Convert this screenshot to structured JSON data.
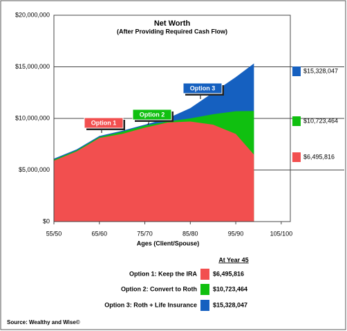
{
  "chart_data": {
    "type": "area",
    "title": "Net Worth",
    "subtitle": "(After Providing Required Cash Flow)",
    "x_label": "Ages (Client/Spouse)",
    "x": [
      55,
      60,
      65,
      70,
      75,
      80,
      85,
      90,
      95,
      99
    ],
    "xlim": [
      55,
      107
    ],
    "xticks": [
      {
        "value": 55,
        "label": "55/50"
      },
      {
        "value": 65,
        "label": "65/60"
      },
      {
        "value": 75,
        "label": "75/70"
      },
      {
        "value": 85,
        "label": "85/80"
      },
      {
        "value": 95,
        "label": "95/90"
      },
      {
        "value": 105,
        "label": "105/100"
      }
    ],
    "ylim": [
      0,
      20000000
    ],
    "yticks": [
      {
        "value": 0,
        "label": "$0"
      },
      {
        "value": 5000000,
        "label": "$5,000,000"
      },
      {
        "value": 10000000,
        "label": "$10,000,000"
      },
      {
        "value": 15000000,
        "label": "$15,000,000"
      },
      {
        "value": 20000000,
        "label": "$20,000,000"
      }
    ],
    "grid": true,
    "table_header": "At Year 45",
    "series": [
      {
        "name": "Option 1",
        "legend_label": "Option 1:  Keep the IRA",
        "color": "#f24f4f",
        "values": [
          5900000,
          6800000,
          8100000,
          8500000,
          9100000,
          9600000,
          9700000,
          9400000,
          8500000,
          6495816
        ],
        "value_labels": [
          null,
          null,
          null,
          null,
          null,
          null,
          null,
          null,
          null,
          "$6,495,816"
        ]
      },
      {
        "name": "Option 2",
        "legend_label": "Option 2:  Convert to Roth",
        "color": "#10c010",
        "values": [
          6000000,
          6900000,
          8200000,
          8700000,
          9300000,
          9700000,
          10000000,
          10400000,
          10700000,
          10723464
        ],
        "value_labels": [
          null,
          null,
          null,
          null,
          null,
          null,
          null,
          null,
          null,
          "$10,723,464"
        ]
      },
      {
        "name": "Option 3",
        "legend_label": "Option 3:  Roth + Life Insurance",
        "color": "#1560c0",
        "values": [
          6100000,
          7000000,
          8300000,
          8800000,
          9400000,
          10000000,
          11000000,
          12500000,
          14000000,
          15328047
        ],
        "value_labels": [
          null,
          null,
          null,
          null,
          null,
          null,
          null,
          null,
          null,
          "$15,328,047"
        ]
      }
    ]
  },
  "source": "Source: Wealthy and Wise©"
}
